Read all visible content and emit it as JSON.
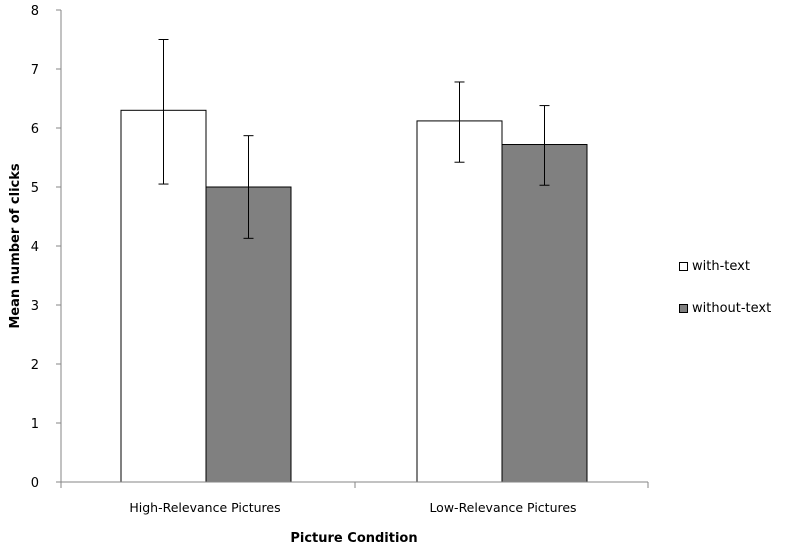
{
  "chart_data": {
    "type": "bar",
    "categories": [
      "High-Relevance Pictures",
      "Low-Relevance Pictures"
    ],
    "series": [
      {
        "name": "with-text",
        "values": [
          6.3,
          6.12
        ],
        "error_low": [
          5.05,
          5.42
        ],
        "error_high": [
          7.5,
          6.78
        ],
        "color": "#ffffff"
      },
      {
        "name": "without-text",
        "values": [
          5.0,
          5.72
        ],
        "error_low": [
          4.13,
          5.03
        ],
        "error_high": [
          5.87,
          6.38
        ],
        "color": "#808080"
      }
    ],
    "title": "",
    "xlabel": "Picture Condition",
    "ylabel": "Mean number of clicks",
    "ylim": [
      0,
      8
    ],
    "yticks": [
      "0",
      "1",
      "2",
      "3",
      "4",
      "5",
      "6",
      "7",
      "8"
    ],
    "grid": false,
    "legend_position": "right"
  }
}
